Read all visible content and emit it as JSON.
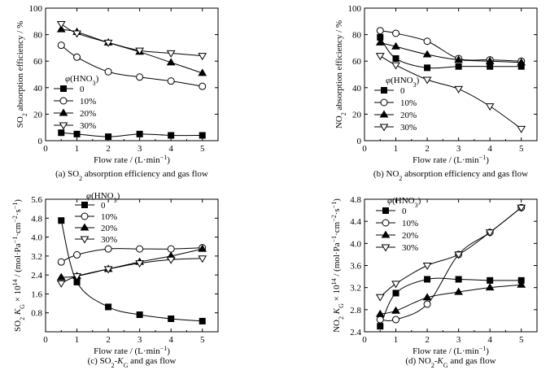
{
  "chart_data": [
    {
      "type": "line",
      "caption_parts": [
        "(a) SO",
        "2",
        " absorption efficiency and gas flow"
      ],
      "xlabel_parts": [
        "Flow rate / (L·min",
        "−1",
        ")"
      ],
      "ylabel_parts": [
        "SO",
        "2",
        " absorption efficiency / %"
      ],
      "xlim": [
        0,
        5.5
      ],
      "ylim": [
        0,
        100
      ],
      "xticks": [
        0,
        1,
        2,
        3,
        4,
        5
      ],
      "yticks": [
        0,
        20,
        40,
        60,
        80,
        100
      ],
      "legend_title_parts": [
        "φ",
        "(HNO",
        "3",
        ")"
      ],
      "legend_position": "lower-left",
      "series": [
        {
          "name": "0",
          "marker": "square",
          "x": [
            0.5,
            1,
            2,
            3,
            4,
            5
          ],
          "y": [
            6,
            5,
            3,
            5,
            4,
            4
          ]
        },
        {
          "name": "10%",
          "marker": "circle",
          "x": [
            0.5,
            1,
            2,
            3,
            4,
            5
          ],
          "y": [
            72,
            63,
            52,
            48,
            45,
            41
          ]
        },
        {
          "name": "20%",
          "marker": "triangle-up",
          "x": [
            0.5,
            1,
            2,
            3,
            4,
            5
          ],
          "y": [
            84,
            82,
            74,
            67,
            59,
            51
          ]
        },
        {
          "name": "30%",
          "marker": "triangle-down",
          "x": [
            0.5,
            1,
            2,
            3,
            4,
            5
          ],
          "y": [
            88,
            81,
            74,
            68,
            66,
            64
          ]
        }
      ]
    },
    {
      "type": "line",
      "caption_parts": [
        "(b) NO",
        "2",
        " absorption efficiency and gas flow"
      ],
      "xlabel_parts": [
        "Flow rate / (L·min",
        "−1",
        ")"
      ],
      "ylabel_parts": [
        "NO",
        "2",
        " absorption efficiency / %"
      ],
      "xlim": [
        0,
        5.5
      ],
      "ylim": [
        0,
        100
      ],
      "xticks": [
        0,
        1,
        2,
        3,
        4,
        5
      ],
      "yticks": [
        0,
        20,
        40,
        60,
        80,
        100
      ],
      "legend_title_parts": [
        "φ",
        "(HNO",
        "3",
        ")"
      ],
      "legend_position": "lower-left",
      "series": [
        {
          "name": "0",
          "marker": "square",
          "x": [
            0.5,
            1,
            2,
            3,
            4,
            5
          ],
          "y": [
            78,
            62,
            55,
            56,
            56,
            56
          ]
        },
        {
          "name": "10%",
          "marker": "circle",
          "x": [
            0.5,
            1,
            2,
            3,
            4,
            5
          ],
          "y": [
            83,
            81,
            75,
            62,
            61,
            60
          ]
        },
        {
          "name": "20%",
          "marker": "triangle-up",
          "x": [
            0.5,
            1,
            2,
            3,
            4,
            5
          ],
          "y": [
            74,
            71,
            65,
            61,
            60,
            59
          ]
        },
        {
          "name": "30%",
          "marker": "triangle-down",
          "x": [
            0.5,
            1,
            2,
            3,
            4,
            5
          ],
          "y": [
            64,
            57,
            46,
            39,
            26,
            9
          ]
        }
      ]
    },
    {
      "type": "line",
      "caption_parts": [
        "(c) SO",
        "2",
        "-K",
        "G",
        " and gas flow"
      ],
      "xlabel_parts": [
        "Flow rate / (L·min",
        "−1",
        ")"
      ],
      "ylabel_parts": [
        "SO",
        "2",
        " K",
        "G",
        " × 10",
        "14",
        " / (mol·Pa",
        "−1",
        "·cm",
        "−2",
        "·s",
        "−1",
        ")"
      ],
      "xlim": [
        0,
        5.5
      ],
      "ylim": [
        0,
        5.6
      ],
      "xticks": [
        0,
        1,
        2,
        3,
        4,
        5
      ],
      "yticks": [
        0.8,
        1.6,
        2.4,
        3.2,
        4.0,
        4.8,
        5.6
      ],
      "ytick_labels": [
        "0.8",
        "1.6",
        "2.4",
        "3.2",
        "4.0",
        "4.8",
        "5.6"
      ],
      "legend_title_parts": [
        "φ",
        "(HNO",
        "3",
        ")"
      ],
      "legend_position": "top-center",
      "series": [
        {
          "name": "0",
          "marker": "square",
          "x": [
            0.5,
            1,
            2,
            3,
            4,
            5
          ],
          "y": [
            4.7,
            2.1,
            1.05,
            0.72,
            0.55,
            0.45
          ]
        },
        {
          "name": "10%",
          "marker": "circle",
          "x": [
            0.5,
            1,
            2,
            3,
            4,
            5
          ],
          "y": [
            2.95,
            3.25,
            3.5,
            3.5,
            3.5,
            3.55
          ]
        },
        {
          "name": "20%",
          "marker": "triangle-up",
          "x": [
            0.5,
            1,
            2,
            3,
            4,
            5
          ],
          "y": [
            2.3,
            2.35,
            2.65,
            2.95,
            3.2,
            3.5
          ]
        },
        {
          "name": "30%",
          "marker": "triangle-down",
          "x": [
            0.5,
            1,
            2,
            3,
            4,
            5
          ],
          "y": [
            2.05,
            2.35,
            2.65,
            2.9,
            3.05,
            3.1
          ]
        }
      ]
    },
    {
      "type": "line",
      "caption_parts": [
        "(d) NO",
        "2",
        "-K",
        "G",
        " and gas flow"
      ],
      "xlabel_parts": [
        "Flow rate / (L·min",
        "−1",
        ")"
      ],
      "ylabel_parts": [
        "NO",
        "2",
        " K",
        "G",
        " × 10",
        "14",
        " / (mol·Pa",
        "−1",
        "·cm",
        "−2",
        "·s",
        "−1",
        ")"
      ],
      "xlim": [
        0,
        5.5
      ],
      "ylim": [
        2.4,
        4.8
      ],
      "xticks": [
        0,
        1,
        2,
        3,
        4,
        5
      ],
      "yticks": [
        2.4,
        2.8,
        3.2,
        3.6,
        4.0,
        4.4,
        4.8
      ],
      "ytick_labels": [
        "2.4",
        "2.8",
        "3.2",
        "3.6",
        "4.0",
        "4.4",
        "4.8"
      ],
      "legend_title_parts": [
        "φ",
        "(HNO",
        "3",
        ")"
      ],
      "legend_position": "top-left",
      "series": [
        {
          "name": "0",
          "marker": "square",
          "x": [
            0.5,
            1,
            2,
            3,
            4,
            5
          ],
          "y": [
            2.5,
            3.1,
            3.35,
            3.35,
            3.33,
            3.33
          ]
        },
        {
          "name": "10%",
          "marker": "circle",
          "x": [
            0.5,
            1,
            2,
            3,
            4,
            5
          ],
          "y": [
            2.62,
            2.62,
            2.9,
            3.8,
            4.2,
            4.65
          ]
        },
        {
          "name": "20%",
          "marker": "triangle-up",
          "x": [
            0.5,
            1,
            2,
            3,
            4,
            5
          ],
          "y": [
            2.72,
            2.78,
            3.02,
            3.12,
            3.2,
            3.25
          ]
        },
        {
          "name": "30%",
          "marker": "triangle-down",
          "x": [
            0.5,
            1,
            2,
            3,
            4,
            5
          ],
          "y": [
            3.03,
            3.27,
            3.6,
            3.8,
            4.2,
            4.65
          ]
        }
      ]
    }
  ]
}
